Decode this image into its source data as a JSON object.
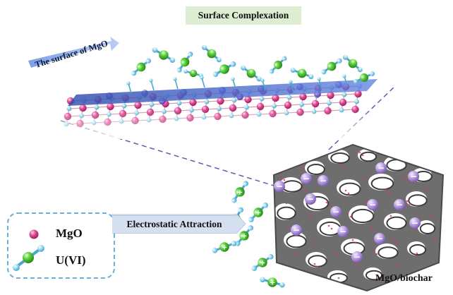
{
  "labels": {
    "surface_complexation": "Surface Complexation",
    "surface_of_mgo": "The surface of MgO",
    "electrostatic_attraction": "Electrostatic Attraction",
    "mgo_biochar": "MgO/biochar"
  },
  "legend": {
    "mgo": "MgO",
    "uvi": "U(VI)"
  },
  "charges": {
    "positive": "+",
    "negative": "−"
  },
  "colors": {
    "surface_plane": "#3d63c2",
    "mgo_sphere": "#d8337f",
    "oxygen_sphere": "#8fd0e6",
    "uranium_sphere": "#5cd13f",
    "biochar": "#6e6e6e",
    "pore_site": "#b79be0",
    "legend_border": "#6ab0d8",
    "title_bg": "#dcedd2",
    "arrow_bg": "#d4dff0"
  }
}
